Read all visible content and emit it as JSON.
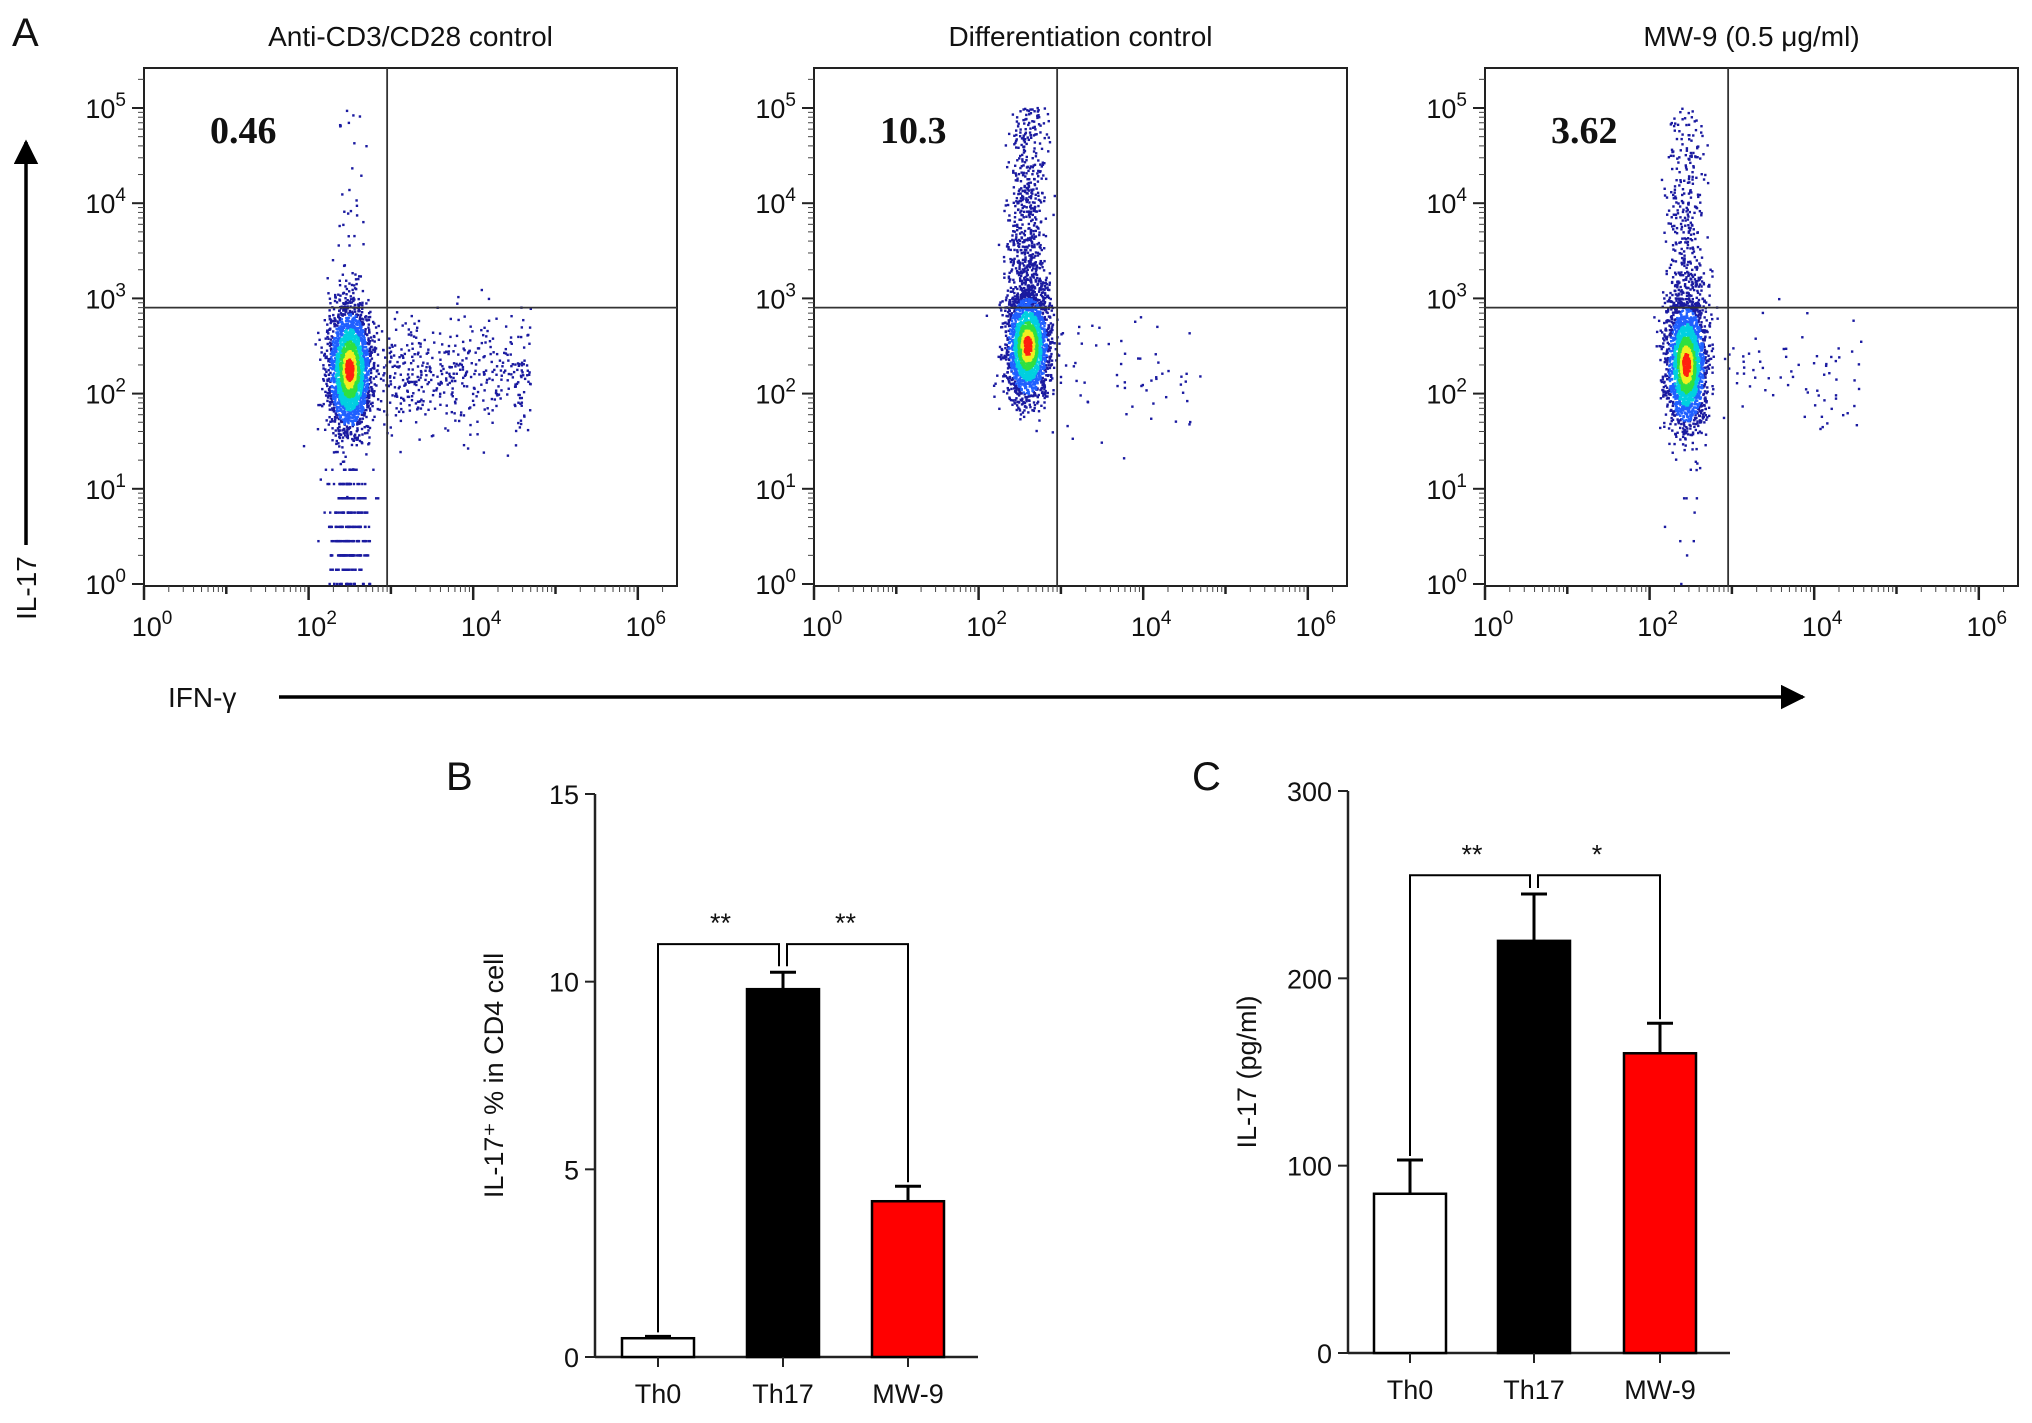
{
  "panel_labels": {
    "a": "A",
    "b": "B",
    "c": "C"
  },
  "chart_data": [
    {
      "type": "scatter",
      "subtype": "flow-cytometry-density",
      "panel": "A",
      "xlabel": "IFN-γ",
      "ylabel": "IL-17",
      "x_scale": "log",
      "y_scale": "log",
      "x_ticks": [
        "10^0",
        "10^2",
        "10^4",
        "10^6"
      ],
      "y_ticks": [
        "10^0",
        "10^1",
        "10^2",
        "10^3",
        "10^4",
        "10^5"
      ],
      "quadrant_gate": {
        "ifn_gamma": 900,
        "il17": 800
      },
      "plots": [
        {
          "title": "Anti-CD3/CD28 control",
          "upper_left_percent": "0.46"
        },
        {
          "title": "Differentiation control",
          "upper_left_percent": "10.3"
        },
        {
          "title": "MW-9 (0.5 μg/ml)",
          "upper_left_percent": "3.62"
        }
      ],
      "density_colors": [
        "#1a1aa0",
        "#2060ff",
        "#00d0e0",
        "#30e040",
        "#f0f020",
        "#ff2010"
      ]
    },
    {
      "type": "bar",
      "panel": "B",
      "categories": [
        "Th0",
        "Th17",
        "MW-9"
      ],
      "values": [
        0.5,
        9.8,
        4.15
      ],
      "errors": [
        0.05,
        0.45,
        0.4
      ],
      "colors": [
        "#ffffff",
        "#000000",
        "#ff0000"
      ],
      "ylabel": "IL-17⁺ % in CD4 cell",
      "ylim": [
        0,
        15
      ],
      "yticks": [
        "0",
        "5",
        "10",
        "15"
      ],
      "significance": [
        {
          "from": "Th0",
          "to": "Th17",
          "label": "**"
        },
        {
          "from": "Th17",
          "to": "MW-9",
          "label": "**"
        }
      ],
      "bracket_level": 11
    },
    {
      "type": "bar",
      "panel": "C",
      "categories": [
        "Th0",
        "Th17",
        "MW-9"
      ],
      "values": [
        85,
        220,
        160
      ],
      "errors": [
        18,
        25,
        16
      ],
      "colors": [
        "#ffffff",
        "#000000",
        "#ff0000"
      ],
      "ylabel": "IL-17 (pg/ml)",
      "ylim": [
        0,
        300
      ],
      "yticks": [
        "0",
        "100",
        "200",
        "300"
      ],
      "significance": [
        {
          "from": "Th0",
          "to": "Th17",
          "label": "**"
        },
        {
          "from": "Th17",
          "to": "MW-9",
          "label": "*"
        }
      ],
      "bracket_level": 255
    }
  ]
}
